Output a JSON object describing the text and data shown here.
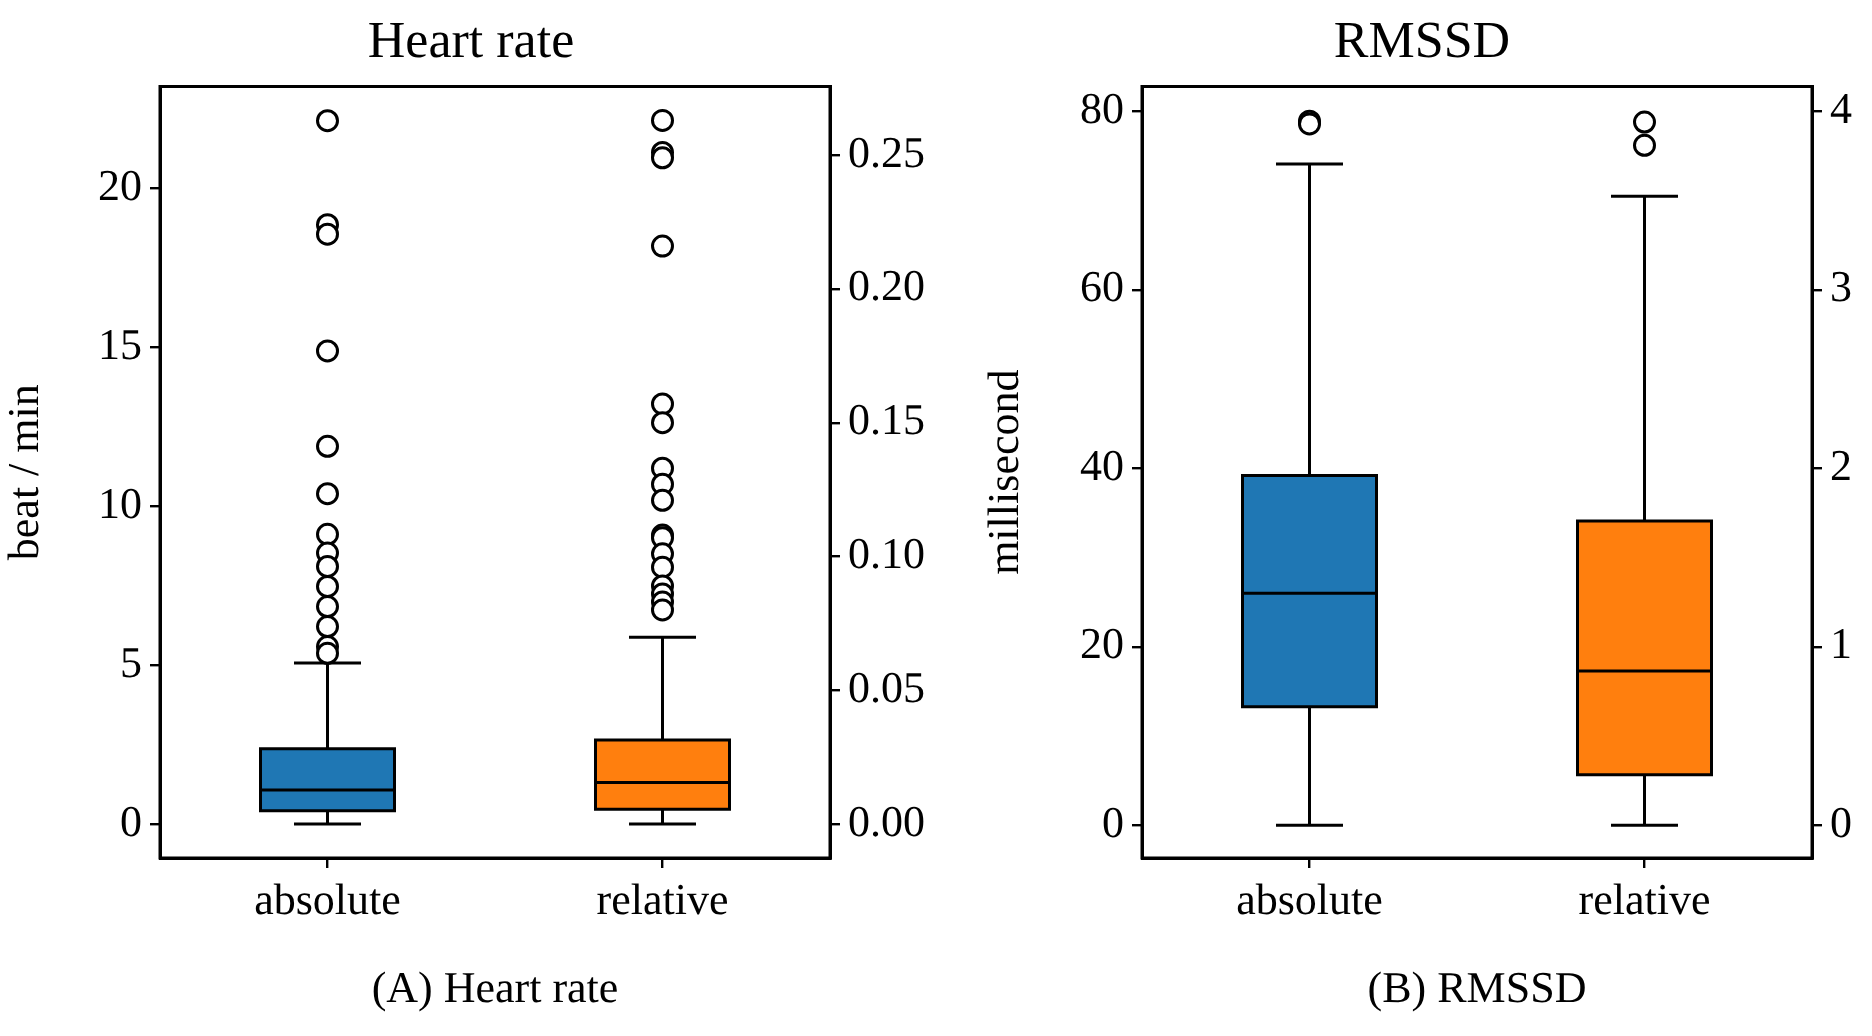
{
  "chart_data": [
    {
      "type": "box",
      "title": "Heart rate",
      "ylabel": "beat / min",
      "categories": [
        "absolute",
        "relative"
      ],
      "series": [
        {
          "color": "#1f77b4",
          "boxes": [
            {
              "low": 0,
              "q1": 0.42,
              "median": 1.07,
              "q3": 2.37,
              "high": 5.06,
              "outliers": [
                22.12,
                18.85,
                18.55,
                14.88,
                11.88,
                10.39,
                9.11,
                8.52,
                8.1,
                7.47,
                6.84,
                6.21,
                5.58,
                5.37
              ]
            },
            null
          ]
        },
        {
          "color": "#ff7f0e",
          "axis": "y2",
          "boxes": [
            null,
            {
              "low": 0,
              "q1": 0.0055,
              "median": 0.0155,
              "q3": 0.0314,
              "high": 0.0698,
              "outliers": [
                0.263,
                0.251,
                0.249,
                0.216,
                0.157,
                0.15,
                0.133,
                0.127,
                0.121,
                0.108,
                0.107,
                0.101,
                0.096,
                0.089,
                0.086,
                0.083,
                0.08
              ]
            }
          ]
        }
      ],
      "ylim": [
        -1.07,
        23.2
      ],
      "yticks": [
        0,
        5,
        10,
        15,
        20
      ],
      "y2lim": [
        -0.0127,
        0.2757
      ],
      "y2ticks": [
        {
          "value": 0,
          "label": "0.00"
        },
        {
          "value": 0.05,
          "label": "0.05"
        },
        {
          "value": 0.1,
          "label": "0.10"
        },
        {
          "value": 0.15,
          "label": "0.15"
        },
        {
          "value": 0.2,
          "label": "0.20"
        },
        {
          "value": 0.25,
          "label": "0.25"
        }
      ],
      "grid": false,
      "legend": false,
      "annotations": [
        "(A) Heart rate"
      ]
    },
    {
      "type": "box",
      "title": "RMSSD",
      "ylabel": "millisecond",
      "categories": [
        "absolute",
        "relative"
      ],
      "series": [
        {
          "color": "#1f77b4",
          "boxes": [
            {
              "low": 0,
              "q1": 13.3,
              "median": 26.0,
              "q3": 39.2,
              "high": 74.1,
              "outliers": [
                78.9,
                78.6
              ]
            },
            null
          ]
        },
        {
          "color": "#ff7f0e",
          "axis": "y2",
          "boxes": [
            null,
            {
              "low": 0,
              "q1": 0.284,
              "median": 0.864,
              "q3": 1.705,
              "high": 3.525,
              "outliers": [
                3.94,
                3.81
              ]
            }
          ]
        }
      ],
      "ylim": [
        -3.66,
        82.8
      ],
      "yticks": [
        0,
        20,
        40,
        60,
        80
      ],
      "y2lim": [
        -0.183,
        4.14
      ],
      "y2ticks": [
        0,
        1,
        2,
        3,
        4
      ],
      "grid": false,
      "legend": false,
      "annotations": [
        "(B) RMSSD"
      ]
    }
  ]
}
